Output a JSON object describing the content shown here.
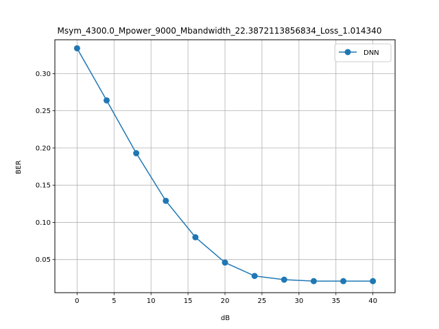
{
  "chart_data": {
    "type": "line",
    "title": "Msym_4300.0_Mpower_9000_Mbandwidth_22.3872113856834_Loss_1.014340",
    "xlabel": "dB",
    "ylabel": "BER",
    "xlim": [
      -3,
      43
    ],
    "ylim": [
      0.0055,
      0.3455
    ],
    "xticks": [
      0,
      5,
      10,
      15,
      20,
      25,
      30,
      35,
      40
    ],
    "xtick_labels": [
      "0",
      "5",
      "10",
      "15",
      "20",
      "25",
      "30",
      "35",
      "40"
    ],
    "yticks": [
      0.05,
      0.1,
      0.15,
      0.2,
      0.25,
      0.3
    ],
    "ytick_labels": [
      "0.05",
      "0.10",
      "0.15",
      "0.20",
      "0.25",
      "0.30"
    ],
    "grid": true,
    "legend_position": "top-right",
    "series": [
      {
        "name": "DNN",
        "color": "#1f77b4",
        "marker": "circle",
        "x": [
          0,
          4,
          8,
          12,
          16,
          20,
          24,
          28,
          32,
          36,
          40
        ],
        "y": [
          0.334,
          0.264,
          0.193,
          0.129,
          0.08,
          0.046,
          0.028,
          0.023,
          0.021,
          0.021,
          0.021
        ]
      }
    ]
  }
}
